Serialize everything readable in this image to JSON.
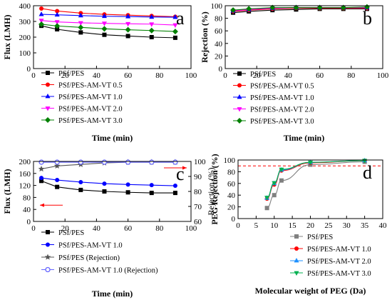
{
  "chart_data": [
    {
      "panel_label": "a",
      "type": "line",
      "xlabel": "Time (min)",
      "ylabel": "Flux (LMH)",
      "xlim": [
        0,
        100
      ],
      "ylim": [
        0,
        400
      ],
      "xticks": [
        "0",
        "20",
        "40",
        "60",
        "80",
        "100"
      ],
      "yticks": [
        "0",
        "100",
        "200",
        "300",
        "400"
      ],
      "legend_position": "bottom-left",
      "x": [
        5,
        15,
        30,
        45,
        60,
        75,
        90
      ],
      "series": [
        {
          "name": "PSf/PES",
          "color": "#000000",
          "marker": "square",
          "values": [
            272,
            250,
            230,
            215,
            207,
            200,
            196
          ]
        },
        {
          "name": "PSf/PES-AM-VT 0.5",
          "color": "#ff0000",
          "marker": "circle",
          "values": [
            382,
            366,
            353,
            345,
            340,
            335,
            330
          ]
        },
        {
          "name": "PSf/PES-AM-VT 1.0",
          "color": "#0000ff",
          "marker": "triangle-up",
          "values": [
            345,
            342,
            337,
            333,
            331,
            328,
            327
          ]
        },
        {
          "name": "PSf/PES-AM-VT 2.0",
          "color": "#ff00ff",
          "marker": "triangle-down",
          "values": [
            306,
            297,
            291,
            288,
            285,
            283,
            277
          ]
        },
        {
          "name": "PSf/PES-AM-VT 3.0",
          "color": "#008000",
          "marker": "diamond",
          "values": [
            282,
            271,
            262,
            253,
            247,
            242,
            236
          ]
        }
      ]
    },
    {
      "panel_label": "b",
      "type": "line",
      "xlabel": "Time (min)",
      "ylabel": "Rejection (%)",
      "xlim": [
        0,
        100
      ],
      "ylim": [
        0,
        100
      ],
      "xticks": [
        "0",
        "20",
        "40",
        "60",
        "80",
        "100"
      ],
      "yticks": [
        "0",
        "20",
        "40",
        "60",
        "80",
        "100"
      ],
      "legend_position": "bottom-left",
      "x": [
        5,
        15,
        30,
        45,
        60,
        75,
        90
      ],
      "series": [
        {
          "name": "PSf/PES",
          "color": "#000000",
          "marker": "square",
          "values": [
            89,
            91,
            93,
            94,
            95,
            95,
            95
          ]
        },
        {
          "name": "PSf/PES-AM-VT 0.5",
          "color": "#ff0000",
          "marker": "circle",
          "values": [
            91,
            93,
            95,
            96,
            96,
            96,
            96
          ]
        },
        {
          "name": "PSf/PES-AM-VT 1.0",
          "color": "#0000ff",
          "marker": "triangle-up",
          "values": [
            92,
            94,
            96,
            97,
            97,
            97,
            97
          ]
        },
        {
          "name": "PSf/PES-AM-VT 2.0",
          "color": "#ff00ff",
          "marker": "triangle-down",
          "values": [
            92,
            94,
            96,
            97,
            97,
            97,
            97
          ]
        },
        {
          "name": "PSf/PES-AM-VT 3.0",
          "color": "#008000",
          "marker": "diamond",
          "values": [
            93,
            95,
            97,
            97,
            97,
            97,
            98
          ]
        }
      ]
    },
    {
      "panel_label": "c",
      "type": "line",
      "xlabel": "Time (min)",
      "ylabel": "Flux (LMH)",
      "ylabel_right": "Rejection (%)",
      "xlim": [
        0,
        100
      ],
      "ylim": [
        0,
        200
      ],
      "ylim_right": [
        60,
        100
      ],
      "xticks": [
        "0",
        "20",
        "40",
        "60",
        "80",
        "100"
      ],
      "yticks": [
        "0",
        "40",
        "80",
        "120",
        "160",
        "200"
      ],
      "yticks_right": [
        "60",
        "70",
        "80",
        "90",
        "100"
      ],
      "legend_position": "bottom-left",
      "x": [
        5,
        15,
        30,
        45,
        60,
        75,
        90
      ],
      "series": [
        {
          "name": "PSf/PES",
          "axis": "left",
          "color": "#000000",
          "marker": "square",
          "values": [
            135,
            115,
            105,
            100,
            97,
            95,
            95
          ]
        },
        {
          "name": "PSf/PES-AM-VT 1.0",
          "axis": "left",
          "color": "#0000ff",
          "marker": "circle",
          "values": [
            145,
            138,
            131,
            126,
            123,
            121,
            119
          ]
        },
        {
          "name": "PSf/PES (Rejection)",
          "axis": "right",
          "color": "#555555",
          "marker": "star",
          "values": [
            95,
            97,
            98,
            99,
            99.5,
            99.5,
            99.5
          ]
        },
        {
          "name": "PSf/PES-AM-VT 1.0 (Rejection)",
          "axis": "right",
          "color": "#6666ff",
          "marker": "circle-open",
          "values": [
            99.5,
            99.5,
            99.5,
            99.5,
            99.5,
            99.5,
            99.5
          ]
        }
      ]
    },
    {
      "panel_label": "d",
      "type": "line",
      "xlabel": "Molecular weight of PEG (Da)",
      "ylabel": "PEG Rejection (%)",
      "xlim": [
        0,
        40
      ],
      "ylim": [
        0,
        100
      ],
      "xticks": [
        "0",
        "5",
        "10",
        "15",
        "20",
        "25",
        "30",
        "35",
        "40"
      ],
      "yticks": [
        "0",
        "20",
        "40",
        "60",
        "80",
        "100"
      ],
      "reference_line_y": 90,
      "legend_position": "bottom-right",
      "x": [
        8,
        10,
        12,
        20,
        35
      ],
      "series": [
        {
          "name": "PSf/PES",
          "color": "#808080",
          "marker": "square",
          "values": [
            18,
            40,
            65,
            92,
            97
          ]
        },
        {
          "name": "PSf/PES-AM-VT 1.0",
          "color": "#ff0000",
          "marker": "circle",
          "values": [
            34,
            58,
            82,
            95,
            99
          ]
        },
        {
          "name": "PSf/PES-AM-VT 2.0",
          "color": "#1e90ff",
          "marker": "triangle-up",
          "values": [
            35,
            60,
            83,
            96,
            99
          ]
        },
        {
          "name": "PSf/PES-AM-VT 3.0",
          "color": "#00b050",
          "marker": "triangle-down",
          "values": [
            36,
            61,
            84,
            96,
            99
          ]
        }
      ]
    }
  ]
}
